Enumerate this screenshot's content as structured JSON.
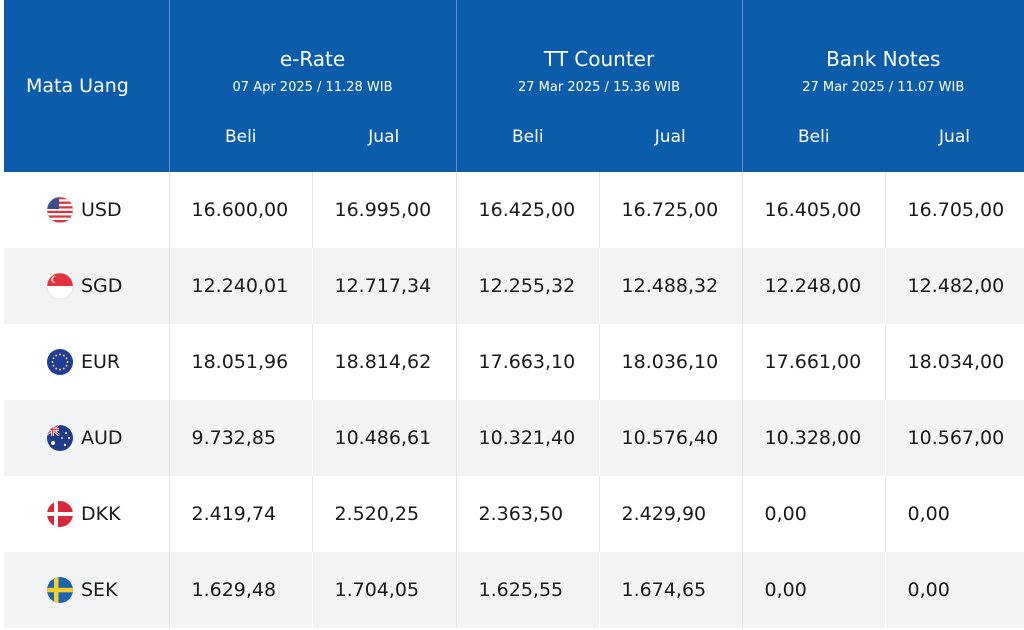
{
  "header": {
    "currency_label": "Mata Uang",
    "groups": [
      {
        "title": "e-Rate",
        "date": "07 Apr 2025 / 11.28 WIB"
      },
      {
        "title": "TT Counter",
        "date": "27 Mar 2025 / 15.36 WIB"
      },
      {
        "title": "Bank Notes",
        "date": "27 Mar 2025 / 11.07 WIB"
      }
    ],
    "buy_label": "Beli",
    "sell_label": "Jual"
  },
  "rows": [
    {
      "code": "USD",
      "flag_icon": "us-flag-icon",
      "values": [
        "16.600,00",
        "16.995,00",
        "16.425,00",
        "16.725,00",
        "16.405,00",
        "16.705,00"
      ]
    },
    {
      "code": "SGD",
      "flag_icon": "singapore-flag-icon",
      "values": [
        "12.240,01",
        "12.717,34",
        "12.255,32",
        "12.488,32",
        "12.248,00",
        "12.482,00"
      ]
    },
    {
      "code": "EUR",
      "flag_icon": "eu-flag-icon",
      "values": [
        "18.051,96",
        "18.814,62",
        "17.663,10",
        "18.036,10",
        "17.661,00",
        "18.034,00"
      ]
    },
    {
      "code": "AUD",
      "flag_icon": "australia-flag-icon",
      "values": [
        "9.732,85",
        "10.486,61",
        "10.321,40",
        "10.576,40",
        "10.328,00",
        "10.567,00"
      ]
    },
    {
      "code": "DKK",
      "flag_icon": "denmark-flag-icon",
      "values": [
        "2.419,74",
        "2.520,25",
        "2.363,50",
        "2.429,90",
        "0,00",
        "0,00"
      ]
    },
    {
      "code": "SEK",
      "flag_icon": "sweden-flag-icon",
      "values": [
        "1.629,48",
        "1.704,05",
        "1.625,55",
        "1.674,65",
        "0,00",
        "0,00"
      ]
    }
  ],
  "colors": {
    "header_bg": "#0b5cab",
    "stripe_bg": "#f1f3f5"
  }
}
